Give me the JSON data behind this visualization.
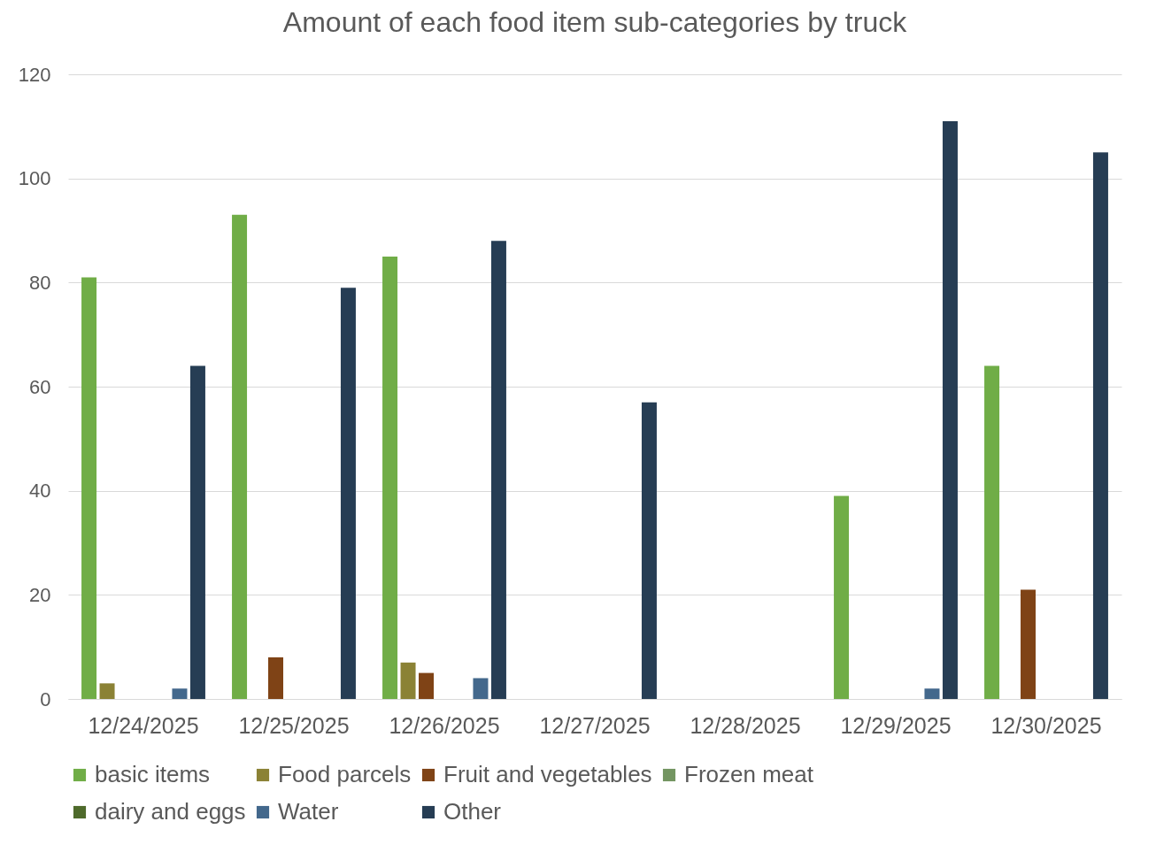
{
  "chart_data": {
    "type": "bar",
    "title": "Amount of each food item sub-categories by truck",
    "categories": [
      "12/24/2025",
      "12/25/2025",
      "12/26/2025",
      "12/27/2025",
      "12/28/2025",
      "12/29/2025",
      "12/30/2025"
    ],
    "series": [
      {
        "name": "basic items",
        "color": "#70ad47",
        "values": [
          81,
          93,
          85,
          null,
          null,
          39,
          64
        ]
      },
      {
        "name": "Food parcels",
        "color": "#8b8235",
        "values": [
          3,
          null,
          7,
          null,
          null,
          null,
          null
        ]
      },
      {
        "name": "Fruit and vegetables",
        "color": "#7f4316",
        "values": [
          null,
          8,
          5,
          null,
          null,
          null,
          21
        ]
      },
      {
        "name": "Frozen meat",
        "color": "#739561",
        "values": [
          null,
          null,
          null,
          null,
          null,
          null,
          null
        ]
      },
      {
        "name": "dairy and eggs",
        "color": "#4e6a2b",
        "values": [
          null,
          null,
          null,
          null,
          null,
          null,
          null
        ]
      },
      {
        "name": "Water",
        "color": "#43688c",
        "values": [
          2,
          null,
          4,
          null,
          null,
          2,
          null
        ]
      },
      {
        "name": "Other",
        "color": "#263d54",
        "values": [
          64,
          79,
          88,
          57,
          null,
          111,
          105
        ]
      }
    ],
    "ylim": [
      0,
      120
    ],
    "yticks": [
      0,
      20,
      40,
      60,
      80,
      100,
      120
    ],
    "grid": "y",
    "legend": "bottom"
  }
}
